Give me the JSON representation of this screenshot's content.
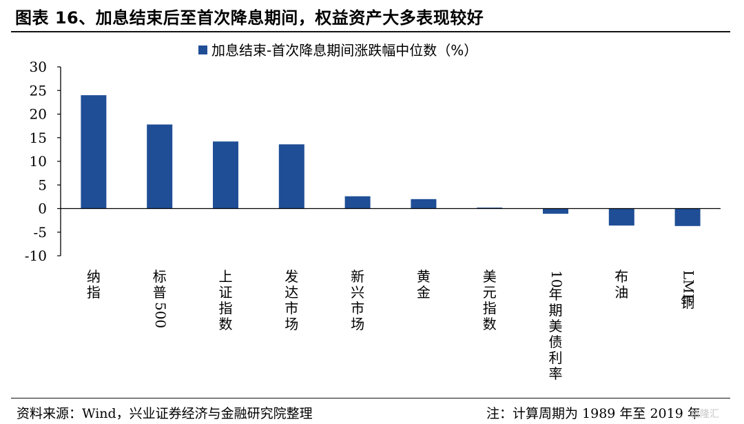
{
  "header": {
    "title": "图表 16、加息结束后至首次降息期间，权益资产大多表现较好"
  },
  "footer": {
    "source": "资料来源：Wind，兴业证券经济与金融研究院整理",
    "note": "注：计算周期为 1989 年至 2019 年",
    "watermark": "格隆汇"
  },
  "chart_data": {
    "type": "bar",
    "categories": [
      "纳指",
      "标普500",
      "上证指数",
      "发达市场",
      "新兴市场",
      "黄金",
      "美元指数",
      "10年期美债利率",
      "布油",
      "LME铜"
    ],
    "series": [
      {
        "name": "加息结束-首次降息期间涨跌幅中位数（%）",
        "values": [
          24,
          17.8,
          14.2,
          13.6,
          2.6,
          2.0,
          0.2,
          -1.1,
          -3.6,
          -3.7
        ]
      }
    ],
    "ylim": [
      -10,
      30
    ],
    "yticks": [
      30,
      25,
      20,
      15,
      10,
      5,
      0,
      -5,
      -10
    ],
    "grid": false,
    "legend": "top-left",
    "colors": {
      "bar": "#1F4E96",
      "axis": "#000000"
    }
  }
}
